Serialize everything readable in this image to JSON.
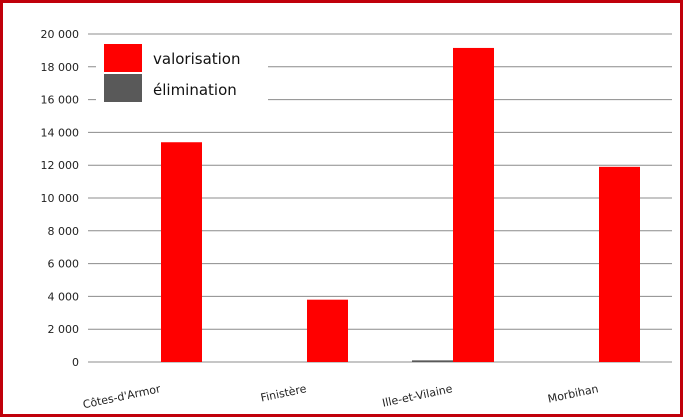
{
  "chart_data": {
    "type": "bar",
    "title": "",
    "xlabel": "",
    "ylabel": "",
    "categories": [
      "Côtes-d'Armor",
      "Finistère",
      "Ille-et-Vilaine",
      "Morbihan"
    ],
    "series": [
      {
        "name": "élimination",
        "values": [
          0,
          0,
          100,
          0
        ],
        "color": "#595959"
      },
      {
        "name": "valorisation",
        "values": [
          13400,
          3800,
          19150,
          11900
        ],
        "color": "#ff0000"
      }
    ],
    "ylim": [
      0,
      20000
    ],
    "yticks": [
      0,
      2000,
      4000,
      6000,
      8000,
      10000,
      12000,
      14000,
      16000,
      18000,
      20000
    ],
    "ytick_labels": [
      "0",
      "2 000",
      "4 000",
      "6 000",
      "8 000",
      "10 000",
      "12 000",
      "14 000",
      "16 000",
      "18 000",
      "20 000"
    ],
    "grid": true,
    "legend": {
      "position": "top-left",
      "entries": [
        {
          "label": "valorisation",
          "color": "#ff0000"
        },
        {
          "label": "élimination",
          "color": "#595959"
        }
      ]
    },
    "frame_color": "#c0000a"
  }
}
